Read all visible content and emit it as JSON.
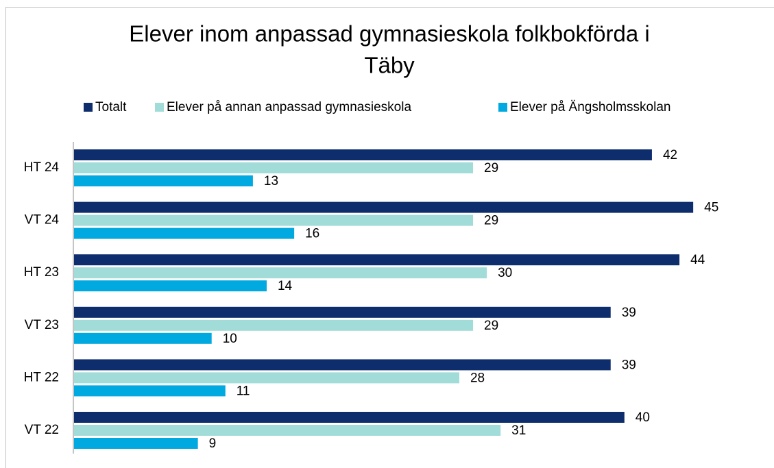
{
  "chart_data": {
    "type": "bar",
    "orientation": "horizontal",
    "title": "Elever inom anpassad gymnasieskola folkbokförda i Täby",
    "categories": [
      "HT 24",
      "VT 24",
      "HT 23",
      "VT 23",
      "HT 22",
      "VT 22"
    ],
    "series": [
      {
        "name": "Totalt",
        "color": "#0e2d6d",
        "values": [
          42,
          45,
          44,
          39,
          39,
          40
        ]
      },
      {
        "name": "Elever på annan anpassad gymnasieskola",
        "color": "#a1dcd9",
        "values": [
          29,
          29,
          30,
          29,
          28,
          31
        ]
      },
      {
        "name": "Elever på Ängsholmsskolan",
        "color": "#00a9e0",
        "values": [
          13,
          16,
          14,
          10,
          11,
          9
        ]
      }
    ],
    "legend": "top"
  }
}
